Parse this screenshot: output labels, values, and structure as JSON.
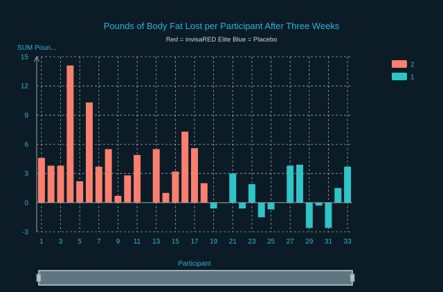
{
  "chart_data": {
    "type": "bar",
    "title": "Pounds of Body Fat Lost per Participant After Three Weeks",
    "subtitle": "Red = invisaRED Elite        Blue = Placebo",
    "xlabel": "Participant",
    "ylabel": "SUM Poun...",
    "ylim": [
      -3,
      15
    ],
    "yticks": [
      -3,
      0,
      3,
      6,
      9,
      12,
      15
    ],
    "grid": true,
    "legend_position": "top-right",
    "categories": [
      1,
      2,
      3,
      4,
      5,
      6,
      7,
      8,
      9,
      10,
      11,
      12,
      13,
      14,
      15,
      16,
      17,
      18,
      19,
      20,
      21,
      22,
      23,
      24,
      25,
      26,
      27,
      28,
      29,
      30,
      31,
      32,
      33
    ],
    "xtick_labels": [
      "1",
      "3",
      "5",
      "7",
      "9",
      "11",
      "13",
      "15",
      "17",
      "19",
      "21",
      "23",
      "25",
      "27",
      "29",
      "31",
      "33"
    ],
    "series": [
      {
        "name": "2",
        "color": "#fa7f6f",
        "values": [
          4.6,
          3.8,
          3.8,
          14.1,
          2.2,
          10.3,
          3.7,
          5.5,
          0.7,
          2.8,
          4.9,
          null,
          5.5,
          1.0,
          3.2,
          7.3,
          5.6,
          2.0,
          null,
          null,
          null,
          null,
          null,
          null,
          null,
          null,
          null,
          null,
          null,
          null,
          null,
          null,
          null
        ]
      },
      {
        "name": "1",
        "color": "#2ec4c8",
        "values": [
          null,
          null,
          null,
          null,
          null,
          null,
          null,
          null,
          null,
          null,
          null,
          null,
          null,
          null,
          null,
          null,
          null,
          null,
          -0.6,
          0.0,
          3.0,
          -0.6,
          1.9,
          -1.5,
          -0.7,
          null,
          3.8,
          3.9,
          -2.6,
          -0.3,
          -2.6,
          1.5,
          3.7
        ]
      }
    ]
  },
  "scrollbar": {
    "label": "horizontal range slider"
  }
}
